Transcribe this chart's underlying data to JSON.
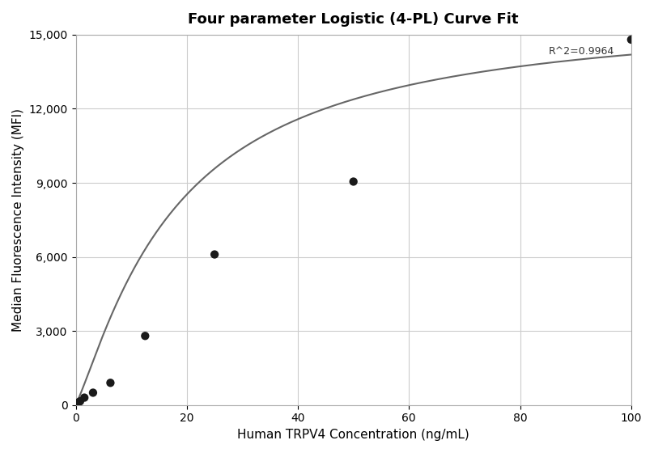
{
  "title": "Four parameter Logistic (4-PL) Curve Fit",
  "xlabel": "Human TRPV4 Concentration (ng/mL)",
  "ylabel": "Median Fluorescence Intensity (MFI)",
  "scatter_x": [
    0.4,
    0.78,
    1.56,
    3.12,
    6.25,
    12.5,
    25.0,
    50.0,
    100.0
  ],
  "scatter_y": [
    100,
    150,
    300,
    500,
    900,
    2800,
    6100,
    9050,
    14800
  ],
  "r_squared": "R^2=0.9964",
  "xlim": [
    0,
    100
  ],
  "ylim": [
    0,
    15000
  ],
  "xticks": [
    0,
    20,
    40,
    60,
    80,
    100
  ],
  "yticks": [
    0,
    3000,
    6000,
    9000,
    12000,
    15000
  ],
  "4pl_A": 50.0,
  "4pl_B": 1.2,
  "4pl_C": 18.0,
  "4pl_D": 16000.0,
  "curve_color": "#666666",
  "scatter_color": "#1a1a1a",
  "background_color": "#ffffff",
  "grid_color": "#cccccc",
  "title_fontsize": 13,
  "label_fontsize": 11,
  "tick_fontsize": 10,
  "annotation_fontsize": 9
}
